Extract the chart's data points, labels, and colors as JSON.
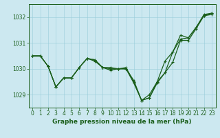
{
  "title": "Graphe pression niveau de la mer (hPa)",
  "background_color": "#cce8f0",
  "grid_color": "#99ccd9",
  "line_color": "#1a5e1a",
  "xlim": [
    -0.5,
    23.5
  ],
  "ylim": [
    1028.5,
    1032.5
  ],
  "yticks": [
    1029,
    1030,
    1031,
    1032
  ],
  "xticks": [
    0,
    1,
    2,
    3,
    4,
    5,
    6,
    7,
    8,
    9,
    10,
    11,
    12,
    13,
    14,
    15,
    16,
    17,
    18,
    19,
    20,
    21,
    22,
    23
  ],
  "series": [
    [
      1030.5,
      1030.5,
      1030.1,
      1029.3,
      1029.65,
      1029.65,
      1030.05,
      1030.4,
      1030.35,
      1030.05,
      1030.05,
      1030.0,
      1030.05,
      1029.5,
      1028.78,
      1028.88,
      1029.45,
      1029.85,
      1030.25,
      1031.1,
      1031.1,
      1031.55,
      1032.05,
      1032.1
    ],
    [
      1030.5,
      1030.5,
      1030.1,
      1029.3,
      1029.65,
      1029.65,
      1030.05,
      1030.4,
      1030.3,
      1030.05,
      1029.95,
      1030.0,
      1030.0,
      1029.45,
      1028.78,
      1029.0,
      1029.5,
      1030.3,
      1030.65,
      1031.15,
      1031.2,
      1031.6,
      1032.05,
      1032.15
    ],
    [
      1030.5,
      1030.5,
      1030.1,
      1029.3,
      1029.65,
      1029.65,
      1030.05,
      1030.4,
      1030.35,
      1030.05,
      1030.0,
      1030.0,
      1030.0,
      1029.55,
      1028.78,
      1028.88,
      1029.5,
      1029.85,
      1030.65,
      1031.3,
      1031.2,
      1031.6,
      1032.1,
      1032.15
    ]
  ],
  "figsize": [
    3.2,
    2.0
  ],
  "dpi": 100,
  "tick_fontsize": 5.5,
  "xlabel_fontsize": 6.5,
  "linewidth": 0.9,
  "markersize": 2.5
}
